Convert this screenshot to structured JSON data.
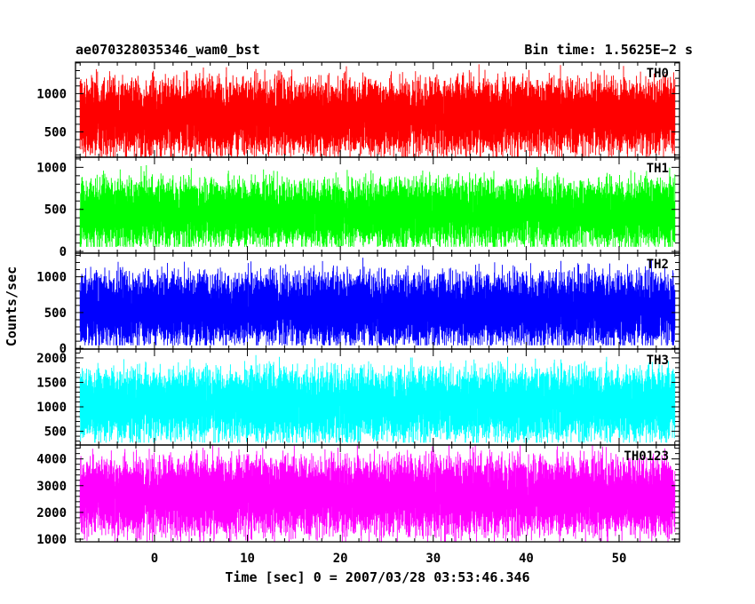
{
  "header": {
    "left_title": "ae070328035346_wam0_bst",
    "right_title": "Bin time: 1.5625E−2 s"
  },
  "axes": {
    "ylabel": "Counts/sec",
    "xlabel": "Time [sec] 0 = 2007/03/28 03:53:46.346"
  },
  "chart_data": {
    "type": "line",
    "x_range": [
      -8.5,
      56.5
    ],
    "data_x_range": [
      -8,
      56
    ],
    "x_ticks": [
      0,
      10,
      20,
      30,
      40,
      50
    ],
    "bin_time_s": 0.015625,
    "panels": [
      {
        "name": "TH0",
        "color": "#ff0000",
        "ylim": [
          170,
          1410
        ],
        "y_ticks": [
          500,
          1000
        ],
        "baseline_approx": 700,
        "low_approx": 200,
        "high_approx": 1300
      },
      {
        "name": "TH1",
        "color": "#00ff00",
        "ylim": [
          -20,
          1120
        ],
        "y_ticks": [
          0,
          500,
          1000
        ],
        "baseline_approx": 450,
        "low_approx": 100,
        "high_approx": 1000
      },
      {
        "name": "TH2",
        "color": "#0000ff",
        "ylim": [
          -10,
          1330
        ],
        "y_ticks": [
          0,
          500,
          1000
        ],
        "baseline_approx": 550,
        "low_approx": 100,
        "high_approx": 1250
      },
      {
        "name": "TH3",
        "color": "#00ffff",
        "ylim": [
          220,
          2180
        ],
        "y_ticks": [
          500,
          1000,
          1500,
          2000
        ],
        "baseline_approx": 1050,
        "low_approx": 350,
        "high_approx": 2000
      },
      {
        "name": "TH0123",
        "color": "#ff00ff",
        "ylim": [
          900,
          4520
        ],
        "y_ticks": [
          1000,
          2000,
          3000,
          4000
        ],
        "baseline_approx": 2600,
        "low_approx": 1000,
        "high_approx": 4300
      }
    ]
  }
}
